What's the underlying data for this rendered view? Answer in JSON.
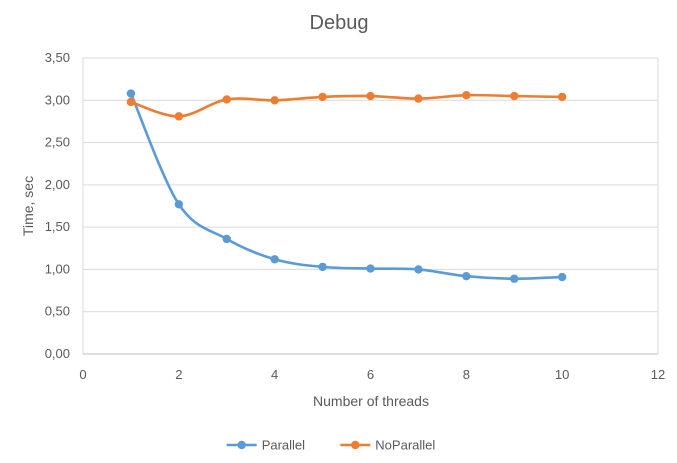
{
  "chart_data": {
    "type": "scatter",
    "title": "Debug",
    "xlabel": "Number of threads",
    "ylabel": "Time, sec",
    "xlim": [
      0,
      12
    ],
    "ylim": [
      0,
      3.5
    ],
    "x_ticks": [
      0,
      2,
      4,
      6,
      8,
      10,
      12
    ],
    "x_tick_labels": [
      "0",
      "2",
      "4",
      "6",
      "8",
      "10",
      "12"
    ],
    "y_ticks": [
      0,
      0.5,
      1,
      1.5,
      2,
      2.5,
      3,
      3.5
    ],
    "y_tick_labels": [
      "0,00",
      "0,50",
      "1,00",
      "1,50",
      "2,00",
      "2,50",
      "3,00",
      "3,50"
    ],
    "grid": "horizontal",
    "legend_position": "bottom",
    "smooth_lines": true,
    "series": [
      {
        "name": "Parallel",
        "color": "#5B9BD5",
        "x": [
          1,
          2,
          3,
          4,
          5,
          6,
          7,
          8,
          9,
          10
        ],
        "y": [
          3.08,
          1.77,
          1.36,
          1.12,
          1.03,
          1.01,
          1.0,
          0.92,
          0.89,
          0.91
        ]
      },
      {
        "name": "NoParallel",
        "color": "#ED7D31",
        "x": [
          1,
          2,
          3,
          4,
          5,
          6,
          7,
          8,
          9,
          10
        ],
        "y": [
          2.98,
          2.81,
          3.01,
          3.0,
          3.04,
          3.05,
          3.02,
          3.06,
          3.05,
          3.04
        ]
      }
    ]
  }
}
